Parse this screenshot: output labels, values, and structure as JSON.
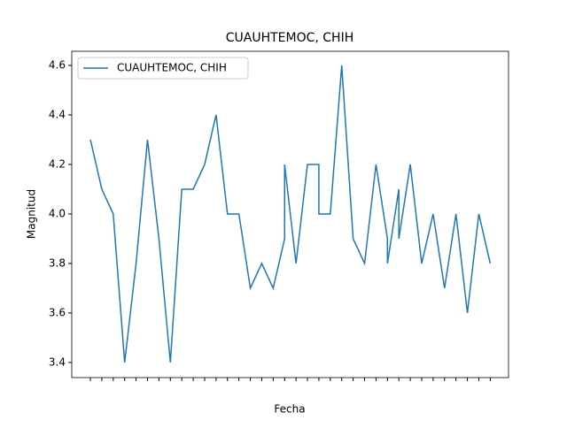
{
  "chart_data": {
    "type": "line",
    "title": "CUAUHTEMOC, CHIH",
    "xlabel": "Fecha",
    "ylabel": "Magnitud",
    "categories": [
      null,
      null,
      null,
      null,
      null,
      null,
      null,
      null,
      null,
      null,
      null,
      null,
      null,
      null,
      null,
      null,
      null,
      null,
      null,
      null,
      null,
      null,
      null,
      null,
      null,
      null,
      null,
      null,
      null,
      null,
      null,
      null,
      null,
      null,
      null,
      null
    ],
    "series": [
      {
        "name": "CUAUHTEMOC, CHIH",
        "color": "#1f77b4",
        "x": [
          0,
          1,
          2,
          3,
          4,
          5,
          6,
          7,
          8,
          9,
          10,
          11,
          12,
          13,
          14,
          15,
          16,
          17,
          17,
          18,
          19,
          20,
          20,
          21,
          22,
          23,
          24,
          25,
          26,
          26,
          27,
          27,
          28,
          29,
          30,
          31,
          32,
          33,
          34,
          35
        ],
        "values": [
          4.3,
          4.1,
          4.0,
          3.4,
          3.8,
          4.3,
          3.9,
          3.4,
          4.1,
          4.1,
          4.2,
          4.4,
          4.0,
          4.0,
          3.7,
          3.8,
          3.7,
          3.9,
          4.2,
          3.8,
          4.2,
          4.2,
          4.0,
          4.0,
          4.6,
          3.9,
          3.8,
          4.2,
          3.9,
          3.8,
          4.1,
          3.9,
          4.2,
          3.8,
          4.0,
          3.7,
          4.0,
          3.6,
          4.0,
          3.8
        ]
      }
    ],
    "xlim": [
      -1.63,
      36.6
    ],
    "ylim": [
      3.339,
      4.657
    ],
    "yticks": [
      3.4,
      3.6,
      3.8,
      {
        "value": 4,
        "label": "4.0"
      },
      4.2,
      4.4,
      4.6
    ],
    "legend": "upper left"
  }
}
